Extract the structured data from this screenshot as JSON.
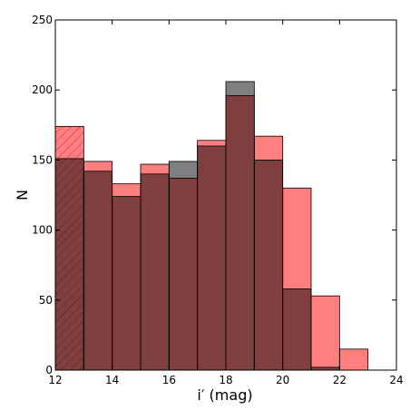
{
  "chart_data": {
    "type": "bar",
    "xlabel": "i′ (mag)",
    "ylabel": "N",
    "xlim": [
      12,
      24
    ],
    "ylim": [
      0,
      250
    ],
    "xticks": [
      "12",
      "14",
      "16",
      "18",
      "20",
      "22",
      "24"
    ],
    "yticks": [
      "0",
      "50",
      "100",
      "150",
      "200",
      "250"
    ],
    "bin_width": 1,
    "grid": false,
    "series": [
      {
        "color": "#ff0000",
        "opacity": 0.5,
        "hatched_bins": [
          12
        ],
        "bins": [
          {
            "x0": 12,
            "value": 174
          },
          {
            "x0": 13,
            "value": 149
          },
          {
            "x0": 14,
            "value": 133
          },
          {
            "x0": 15,
            "value": 147
          },
          {
            "x0": 16,
            "value": 137
          },
          {
            "x0": 17,
            "value": 164
          },
          {
            "x0": 18,
            "value": 196
          },
          {
            "x0": 19,
            "value": 167
          },
          {
            "x0": 20,
            "value": 130
          },
          {
            "x0": 21,
            "value": 53
          },
          {
            "x0": 22,
            "value": 15
          }
        ]
      },
      {
        "color": "#000000",
        "opacity": 0.5,
        "bins": [
          {
            "x0": 12,
            "value": 151
          },
          {
            "x0": 13,
            "value": 142
          },
          {
            "x0": 14,
            "value": 124
          },
          {
            "x0": 15,
            "value": 140
          },
          {
            "x0": 16,
            "value": 149
          },
          {
            "x0": 17,
            "value": 160
          },
          {
            "x0": 18,
            "value": 206
          },
          {
            "x0": 19,
            "value": 150
          },
          {
            "x0": 20,
            "value": 58
          },
          {
            "x0": 21,
            "value": 2
          }
        ]
      }
    ]
  }
}
